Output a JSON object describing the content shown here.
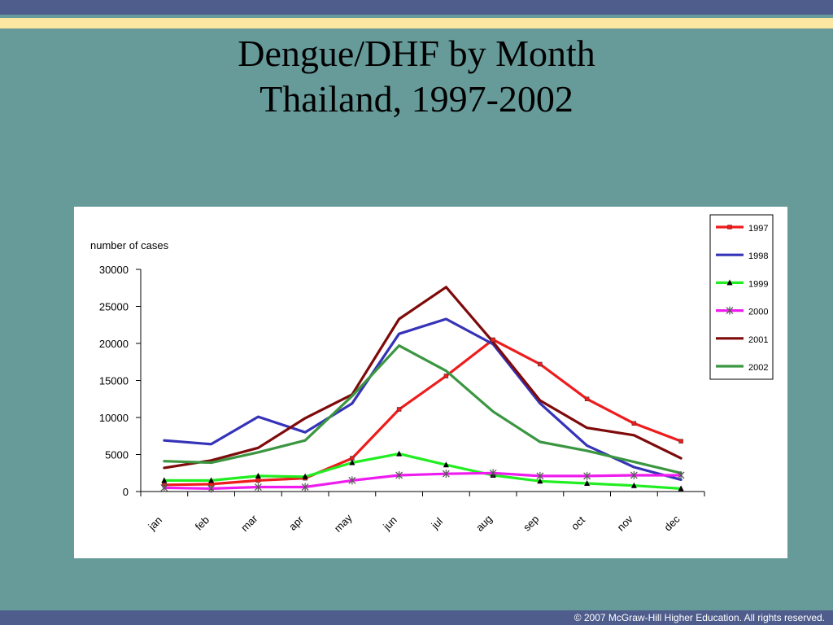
{
  "slide": {
    "title_line1": "Dengue/DHF by Month",
    "title_line2": "Thailand, 1997-2002",
    "copyright": "© 2007 McGraw-Hill Higher Education. All rights reserved."
  },
  "colors": {
    "background": "#679b9a",
    "top_bar": "#4f5d8c",
    "accent_stripe": "#fbe7a1"
  },
  "chart_data": {
    "type": "line",
    "title": "",
    "xlabel": "",
    "ylabel": "number of cases",
    "categories": [
      "jan",
      "feb",
      "mar",
      "apr",
      "may",
      "jun",
      "jul",
      "aug",
      "sep",
      "oct",
      "nov",
      "dec"
    ],
    "ylim": [
      0,
      30000
    ],
    "yticks": [
      0,
      5000,
      10000,
      15000,
      20000,
      25000,
      30000
    ],
    "grid": false,
    "legend_position": "top-right",
    "series": [
      {
        "name": "1997",
        "color": "#ee1c1c",
        "marker": "square",
        "values": [
          900,
          1000,
          1500,
          1800,
          4500,
          11100,
          15600,
          20500,
          17200,
          12500,
          9200,
          6800
        ]
      },
      {
        "name": "1998",
        "color": "#3533b8",
        "marker": "none",
        "values": [
          6900,
          6400,
          10100,
          8000,
          11900,
          21300,
          23300,
          19900,
          11900,
          6200,
          3300,
          1600
        ]
      },
      {
        "name": "1999",
        "color": "#21ee21",
        "marker": "triangle",
        "values": [
          1500,
          1500,
          2100,
          2000,
          3900,
          5100,
          3600,
          2200,
          1400,
          1100,
          800,
          400
        ]
      },
      {
        "name": "2000",
        "color": "#ee1cee",
        "marker": "asterisk",
        "values": [
          500,
          400,
          600,
          600,
          1500,
          2200,
          2400,
          2500,
          2100,
          2100,
          2200,
          2200
        ]
      },
      {
        "name": "2001",
        "color": "#7e0a0a",
        "marker": "none",
        "values": [
          3200,
          4200,
          5900,
          9900,
          13100,
          23300,
          27600,
          20200,
          12300,
          8600,
          7600,
          4500
        ]
      },
      {
        "name": "2002",
        "color": "#3a9640",
        "marker": "none",
        "values": [
          4100,
          3900,
          5300,
          6900,
          12900,
          19700,
          16300,
          10800,
          6700,
          5500,
          4000,
          2500
        ]
      }
    ]
  }
}
